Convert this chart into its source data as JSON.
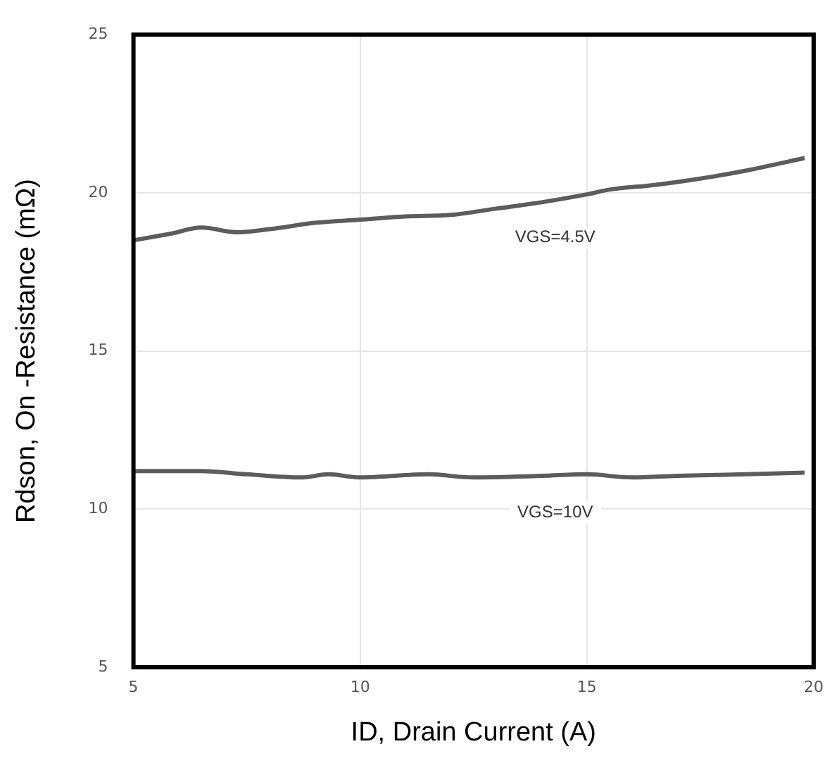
{
  "chart_data": {
    "type": "line",
    "xlabel": "ID, Drain Current (A)",
    "ylabel": "Rdson, On -Resistance (mΩ)",
    "xlim": [
      5,
      20
    ],
    "xticks": [
      5,
      10,
      15,
      20
    ],
    "ylim": [
      5,
      25
    ],
    "yticks": [
      5,
      10,
      15,
      20,
      25
    ],
    "grid": true,
    "legend": false,
    "marker": "none",
    "line_style": "solid",
    "series": [
      {
        "color": "#5c5c5c",
        "x": [
          5,
          5.8,
          6.5,
          7.3,
          8,
          9,
          10,
          11,
          12,
          13,
          14,
          15,
          15.5,
          16.5,
          17.5,
          18.5,
          19.8
        ],
        "values": [
          18.5,
          18.7,
          18.9,
          18.75,
          18.85,
          19.05,
          19.15,
          19.25,
          19.3,
          19.5,
          19.7,
          19.95,
          20.1,
          20.25,
          20.45,
          20.7,
          21.1
        ]
      },
      {
        "color": "#5c5c5c",
        "x": [
          5,
          6.5,
          7.5,
          8.7,
          9.3,
          10,
          11.5,
          12.5,
          14,
          15,
          16,
          17,
          18.5,
          19.8
        ],
        "values": [
          11.2,
          11.2,
          11.1,
          11.0,
          11.1,
          11.0,
          11.1,
          11.0,
          11.05,
          11.1,
          11.0,
          11.05,
          11.1,
          11.15
        ]
      }
    ],
    "annotations": [
      {
        "text": "VGS=4.5V",
        "x": 14.3,
        "y": 19.75
      },
      {
        "text": "VGS=10V",
        "x": 14.3,
        "y": 11.05
      }
    ]
  }
}
